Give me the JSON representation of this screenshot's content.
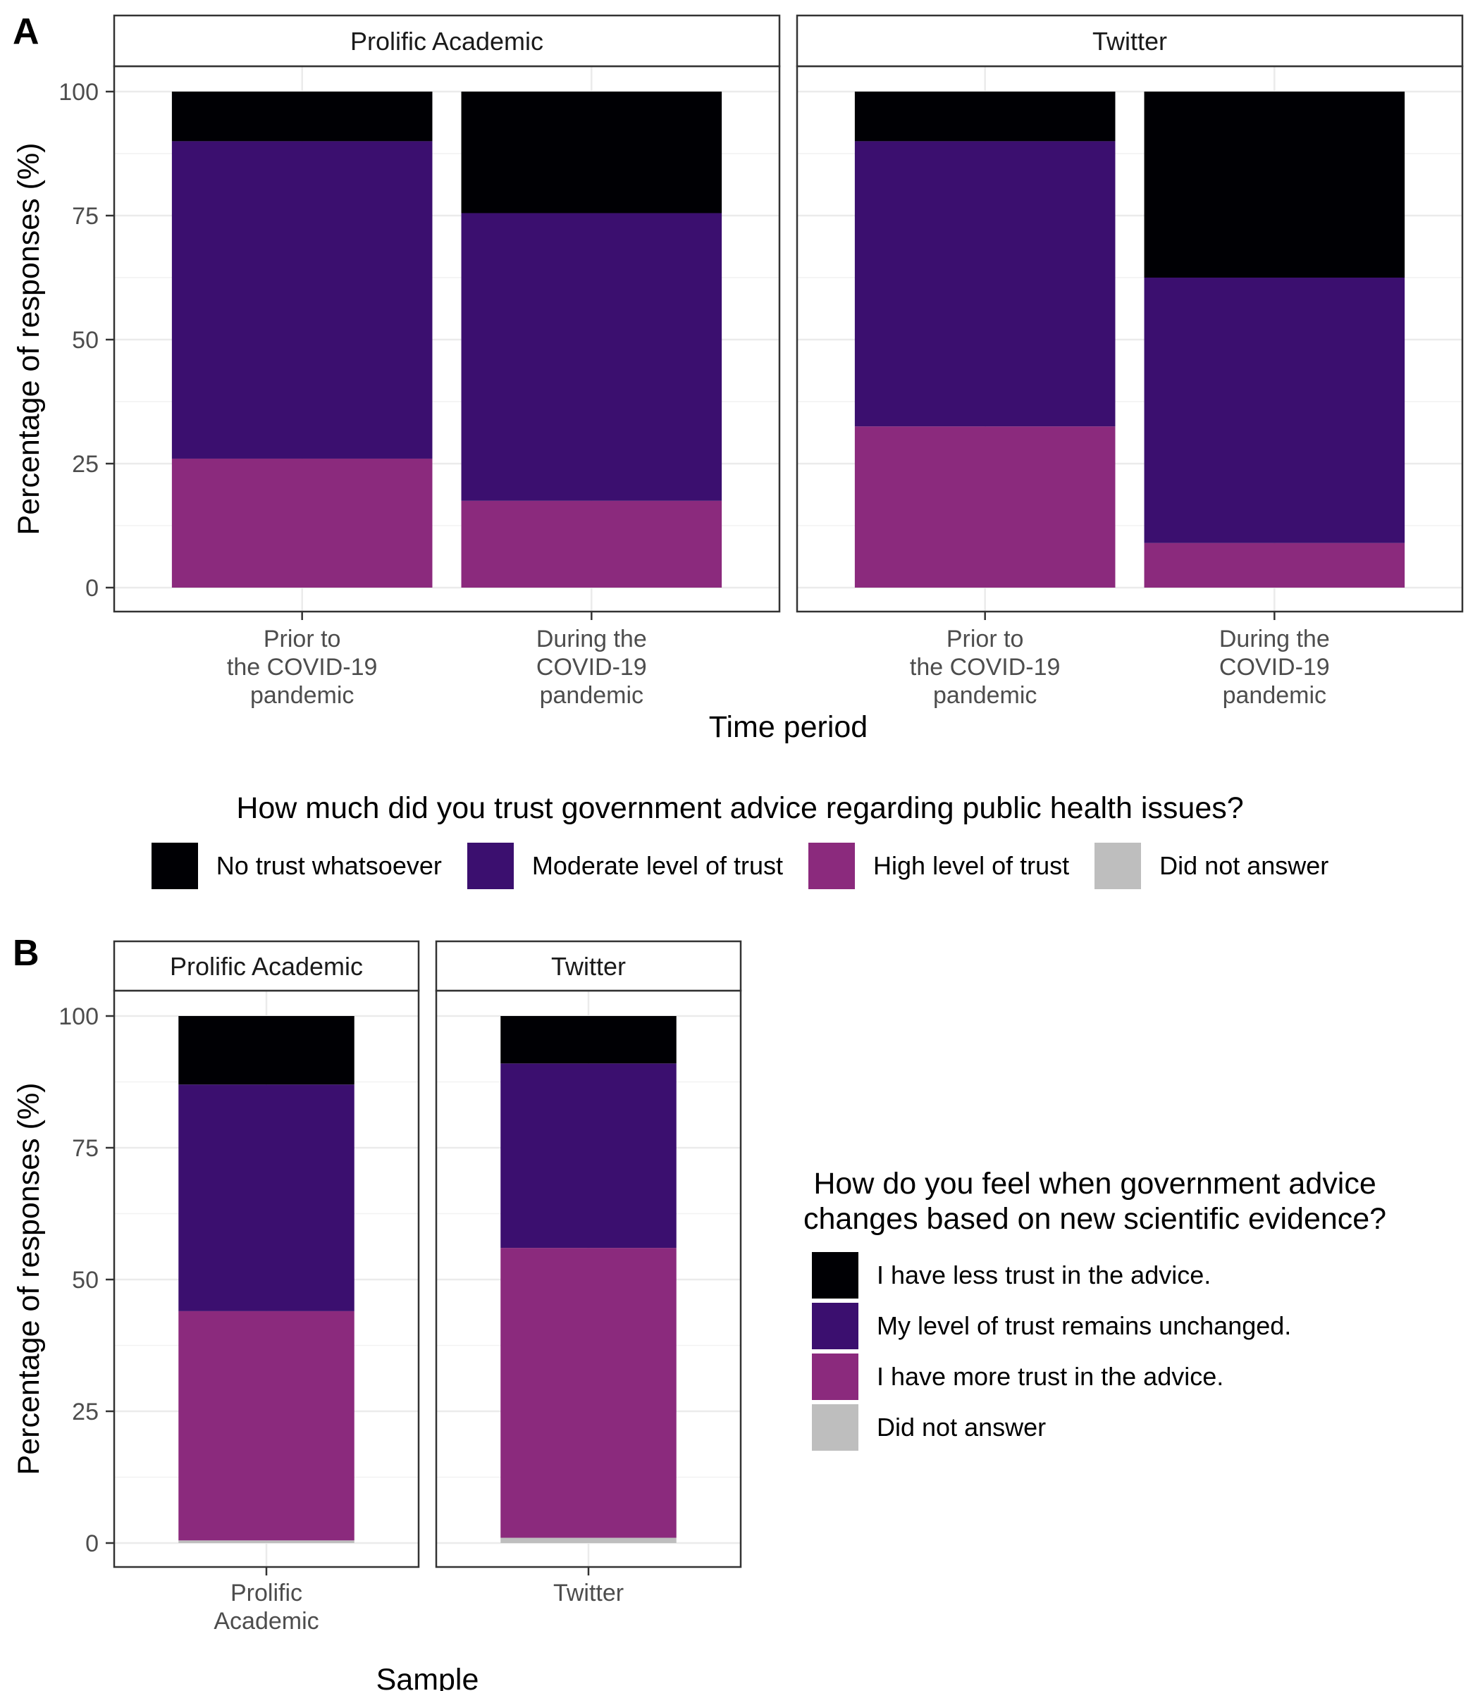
{
  "chart_data": [
    {
      "panel_tag": "A",
      "type": "bar",
      "stacked": true,
      "xlabel": "Time period",
      "ylabel": "Percentage of responses (%)",
      "ylim": [
        0,
        100
      ],
      "yticks": [
        0,
        25,
        50,
        75,
        100
      ],
      "grid": true,
      "facets": [
        "Prolific Academic",
        "Twitter"
      ],
      "categories": [
        "Prior to\nthe COVID-19\npandemic",
        "During the\nCOVID-19\npandemic"
      ],
      "legend": {
        "title": "How much did you trust government advice regarding public health issues?",
        "position": "bottom"
      },
      "series": [
        {
          "name": "Did not answer",
          "color": "#bebebe",
          "values": {
            "Prolific Academic": [
              0,
              0
            ],
            "Twitter": [
              0,
              0
            ]
          }
        },
        {
          "name": "High level of trust",
          "color": "#8b2a7d",
          "values": {
            "Prolific Academic": [
              26,
              17.5
            ],
            "Twitter": [
              32.5,
              9
            ]
          }
        },
        {
          "name": "Moderate level of trust",
          "color": "#3b0f6f",
          "values": {
            "Prolific Academic": [
              64,
              58
            ],
            "Twitter": [
              57.5,
              53.5
            ]
          }
        },
        {
          "name": "No trust whatsoever",
          "color": "#000004",
          "values": {
            "Prolific Academic": [
              10,
              24.5
            ],
            "Twitter": [
              10,
              37.5
            ]
          }
        }
      ]
    },
    {
      "panel_tag": "B",
      "type": "bar",
      "stacked": true,
      "xlabel": "Sample",
      "ylabel": "Percentage of responses (%)",
      "ylim": [
        0,
        100
      ],
      "yticks": [
        0,
        25,
        50,
        75,
        100
      ],
      "grid": true,
      "facets": [
        "Prolific Academic",
        "Twitter"
      ],
      "categories": [
        "Prolific\nAcademic",
        "Twitter"
      ],
      "legend": {
        "title": "How do you feel when government advice\nchanges based on new scientific evidence?",
        "position": "right"
      },
      "series": [
        {
          "name": "Did not answer",
          "color": "#bebebe",
          "values": [
            0.5,
            1
          ]
        },
        {
          "name": "I have more trust in the advice.",
          "color": "#8b2a7d",
          "values": [
            43.5,
            55
          ]
        },
        {
          "name": "My level of trust remains unchanged.",
          "color": "#3b0f6f",
          "values": [
            43,
            35
          ]
        },
        {
          "name": "I have less trust in the advice.",
          "color": "#000004",
          "values": [
            13,
            9
          ]
        }
      ]
    }
  ]
}
